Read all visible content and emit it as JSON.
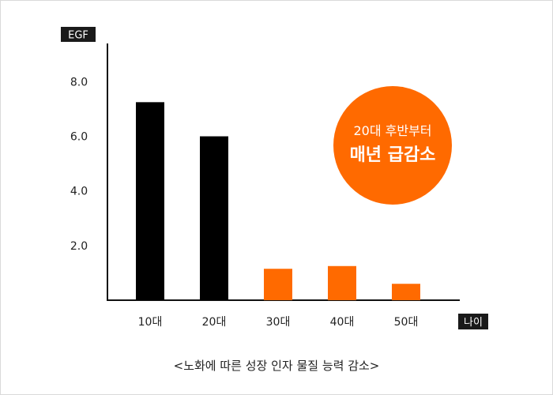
{
  "chart_data": {
    "type": "bar",
    "categories": [
      "10대",
      "20대",
      "30대",
      "40대",
      "50대"
    ],
    "values": [
      7.25,
      6.0,
      1.15,
      1.25,
      0.6
    ],
    "ylabel": "EGF",
    "xlabel": "나이",
    "ylim": [
      0,
      9.4
    ],
    "yticks": [
      "2.0",
      "4.0",
      "6.0",
      "8.0"
    ],
    "ytick_values": [
      2,
      4,
      6,
      8
    ],
    "grid": false,
    "bar_colors": [
      "#000000",
      "#000000",
      "#ff6a00",
      "#ff6a00",
      "#ff6a00"
    ],
    "annotation": {
      "line1": "20대 후반부터",
      "line2": "매년 급감소",
      "color": "#ff6a00"
    },
    "caption": "<노화에 따른 성장 인자 물질 능력 감소>"
  }
}
